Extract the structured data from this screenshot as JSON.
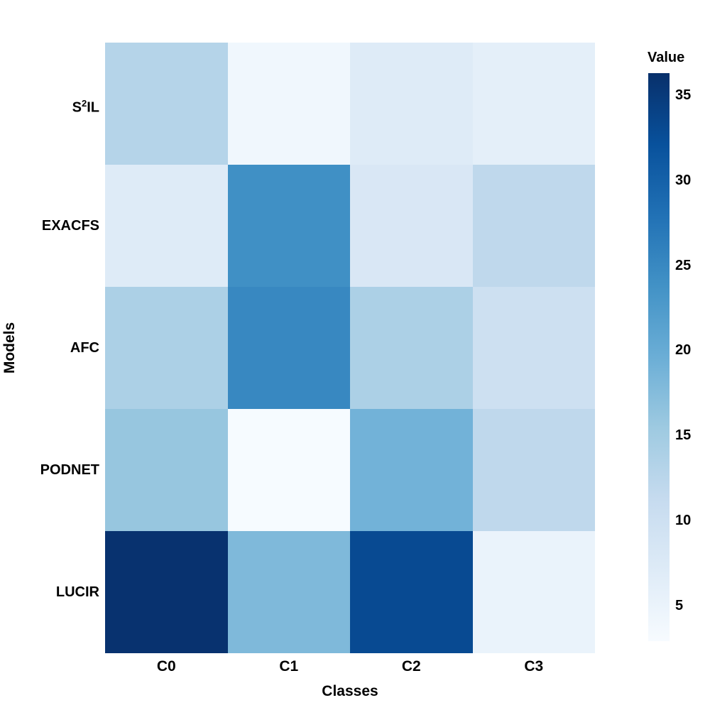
{
  "chart_data": {
    "type": "heatmap",
    "title": "",
    "xlabel": "Classes",
    "ylabel": "Models",
    "x_categories": [
      "C0",
      "C1",
      "C2",
      "C3"
    ],
    "y_categories": [
      "S²IL",
      "EXACFS",
      "AFC",
      "PODNET",
      "LUCIR"
    ],
    "series": [
      {
        "name": "S²IL",
        "values": [
          13,
          4,
          7,
          6
        ]
      },
      {
        "name": "EXACFS",
        "values": [
          7,
          24,
          8,
          12
        ]
      },
      {
        "name": "AFC",
        "values": [
          14,
          25,
          14,
          10
        ]
      },
      {
        "name": "PODNET",
        "values": [
          16,
          3,
          19,
          12
        ]
      },
      {
        "name": "LUCIR",
        "values": [
          36,
          18,
          33,
          5
        ]
      }
    ],
    "colorbar": {
      "title": "Value",
      "ticks": [
        35,
        30,
        25,
        20,
        15,
        10,
        5
      ],
      "vmin": 2.9,
      "vmax": 36.3
    },
    "colormap": "Blues",
    "grid": false,
    "legend_position": "right-colorbar"
  },
  "colors": {
    "background": "#ffffff",
    "text": "#000000",
    "colormap_stops": [
      "#f7fbff",
      "#deebf7",
      "#c6dbef",
      "#9ecae1",
      "#6baed6",
      "#4292c6",
      "#2171b5",
      "#08519c",
      "#08306b"
    ]
  }
}
